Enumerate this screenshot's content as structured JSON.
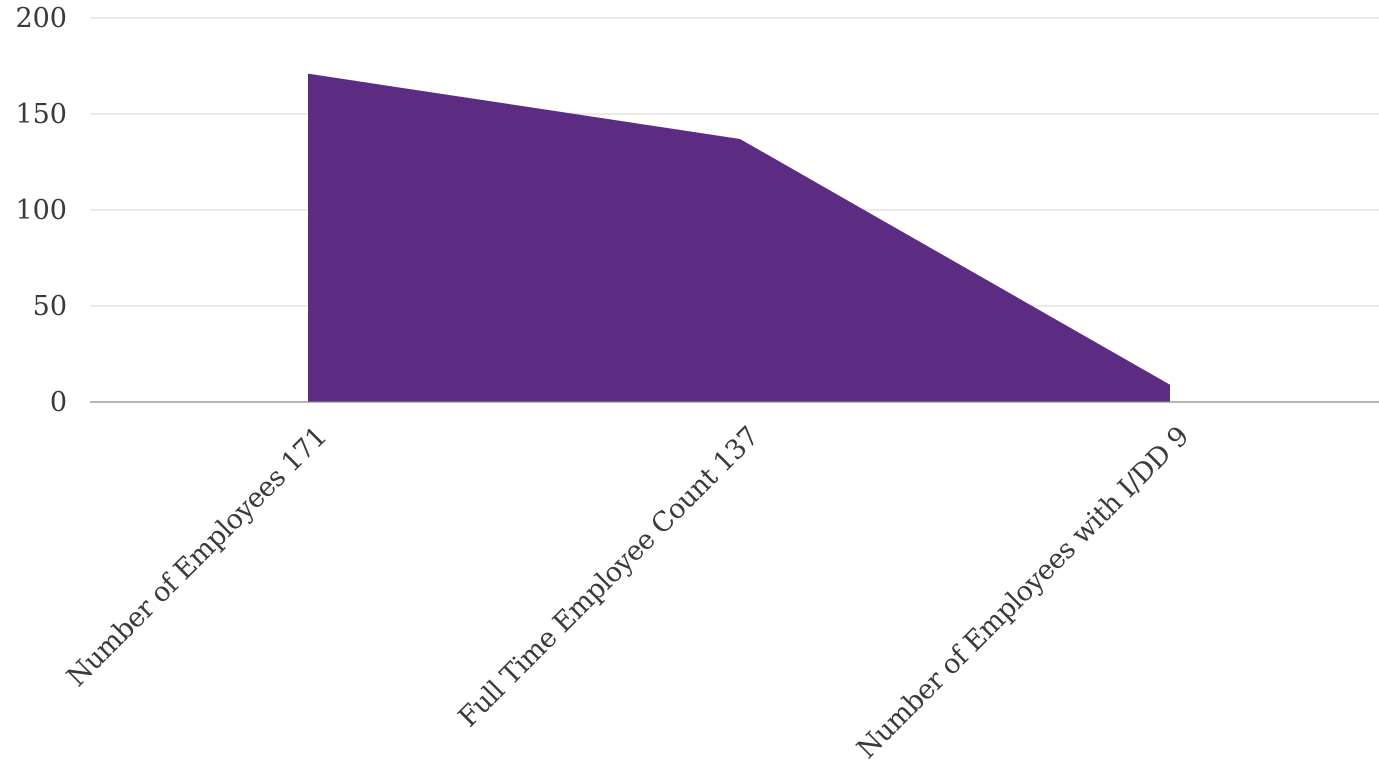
{
  "chart_data": {
    "type": "area",
    "categories": [
      "Number of Employees 171",
      "Full Time Employee Count 137",
      "Number of Employees with I/DD 9"
    ],
    "values": [
      171,
      137,
      9
    ],
    "yticks": [
      "0",
      "50",
      "100",
      "150",
      "200"
    ],
    "ylim": [
      0,
      200
    ],
    "grid": true,
    "legend": "none",
    "colors": {
      "area": "#5c2b82",
      "grid": "#d4d4d4",
      "axis": "#8a8a8a",
      "text": "#3a3a3a"
    }
  }
}
